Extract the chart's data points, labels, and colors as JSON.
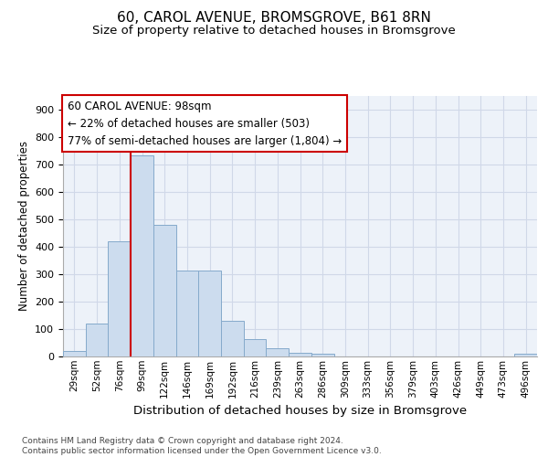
{
  "title_line1": "60, CAROL AVENUE, BROMSGROVE, B61 8RN",
  "title_line2": "Size of property relative to detached houses in Bromsgrove",
  "xlabel": "Distribution of detached houses by size in Bromsgrove",
  "ylabel": "Number of detached properties",
  "bin_labels": [
    "29sqm",
    "52sqm",
    "76sqm",
    "99sqm",
    "122sqm",
    "146sqm",
    "169sqm",
    "192sqm",
    "216sqm",
    "239sqm",
    "263sqm",
    "286sqm",
    "309sqm",
    "333sqm",
    "356sqm",
    "379sqm",
    "403sqm",
    "426sqm",
    "449sqm",
    "473sqm",
    "496sqm"
  ],
  "bar_heights": [
    20,
    120,
    420,
    735,
    480,
    315,
    315,
    130,
    65,
    30,
    15,
    10,
    0,
    0,
    0,
    0,
    0,
    0,
    0,
    0,
    10
  ],
  "bar_color": "#ccdcee",
  "bar_edge_color": "#85aacb",
  "property_line_color": "#cc0000",
  "property_bin_index": 3,
  "annotation_text": "60 CAROL AVENUE: 98sqm\n← 22% of detached houses are smaller (503)\n77% of semi-detached houses are larger (1,804) →",
  "annotation_box_color": "white",
  "annotation_box_edge_color": "#cc0000",
  "annotation_fontsize": 8.5,
  "ylim": [
    0,
    950
  ],
  "yticks": [
    0,
    100,
    200,
    300,
    400,
    500,
    600,
    700,
    800,
    900
  ],
  "footer_text": "Contains HM Land Registry data © Crown copyright and database right 2024.\nContains public sector information licensed under the Open Government Licence v3.0.",
  "grid_color": "#d0d8e8",
  "bg_color": "#edf2f9",
  "title_fontsize": 11,
  "subtitle_fontsize": 9.5
}
